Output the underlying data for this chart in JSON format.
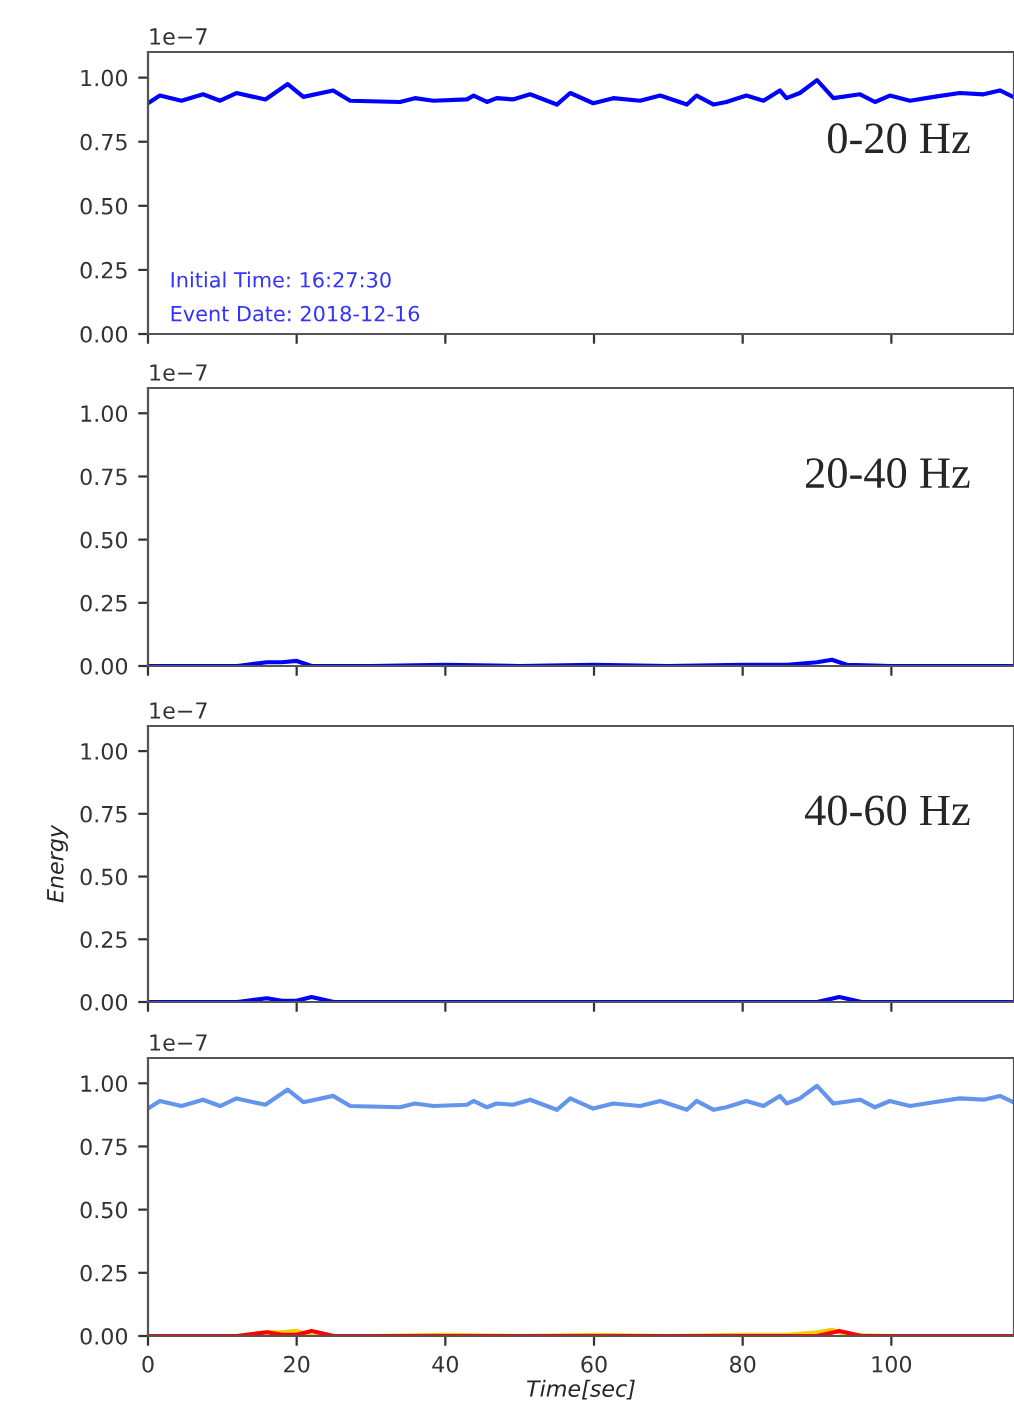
{
  "chart_data": [
    {
      "type": "line",
      "xlim": [
        0,
        116.5
      ],
      "ylim": [
        0,
        1.1
      ],
      "tick_labels": "y",
      "grid": false,
      "legend": false,
      "xticks": [
        {
          "value": 0,
          "label": null
        },
        {
          "value": 20,
          "label": null
        },
        {
          "value": 40,
          "label": null
        },
        {
          "value": 60,
          "label": null
        },
        {
          "value": 80,
          "label": null
        },
        {
          "value": 100,
          "label": null
        }
      ],
      "yticks": [
        {
          "value": 0,
          "label": "0.00"
        },
        {
          "value": 0.25,
          "label": "0.25"
        },
        {
          "value": 0.5,
          "label": "0.50"
        },
        {
          "value": 0.75,
          "label": "0.75"
        },
        {
          "value": 1.0,
          "label": "1.00"
        }
      ],
      "annotations": [
        "1e−7",
        "0-20 Hz",
        "Initial Time: 16:27:30",
        "Event Date: 2018-12-16"
      ],
      "series": [
        {
          "color": "#0000ff",
          "x": [
            0,
            1.6,
            4.5,
            7.4,
            9.7,
            11.9,
            14.2,
            15.8,
            18.8,
            20.9,
            24.9,
            27.2,
            33.9,
            35.9,
            38.4,
            42.9,
            43.8,
            45.6,
            46.9,
            49.1,
            51.4,
            55,
            56.8,
            59.9,
            62.6,
            66.2,
            68.9,
            72.5,
            73.8,
            76.1,
            77.8,
            80.5,
            82.8,
            85,
            85.9,
            87.7,
            90,
            92.2,
            95.8,
            97.8,
            99.8,
            102.5,
            105.7,
            109.2,
            112.4,
            114.6,
            116.4
          ],
          "values": [
            0.9,
            0.93,
            0.91,
            0.935,
            0.91,
            0.94,
            0.925,
            0.915,
            0.975,
            0.925,
            0.95,
            0.91,
            0.905,
            0.92,
            0.91,
            0.915,
            0.93,
            0.905,
            0.92,
            0.915,
            0.935,
            0.895,
            0.94,
            0.9,
            0.92,
            0.91,
            0.93,
            0.895,
            0.93,
            0.895,
            0.905,
            0.93,
            0.91,
            0.95,
            0.92,
            0.94,
            0.99,
            0.92,
            0.935,
            0.905,
            0.93,
            0.91,
            0.925,
            0.94,
            0.935,
            0.95,
            0.925
          ]
        }
      ]
    },
    {
      "type": "line",
      "xlim": [
        0,
        116.5
      ],
      "ylim": [
        0,
        1.1
      ],
      "tick_labels": "y",
      "grid": false,
      "legend": false,
      "xticks": [
        {
          "value": 0,
          "label": null
        },
        {
          "value": 20,
          "label": null
        },
        {
          "value": 40,
          "label": null
        },
        {
          "value": 60,
          "label": null
        },
        {
          "value": 80,
          "label": null
        },
        {
          "value": 100,
          "label": null
        }
      ],
      "yticks": [
        {
          "value": 0,
          "label": "0.00"
        },
        {
          "value": 0.25,
          "label": "0.25"
        },
        {
          "value": 0.5,
          "label": "0.50"
        },
        {
          "value": 0.75,
          "label": "0.75"
        },
        {
          "value": 1.0,
          "label": "1.00"
        }
      ],
      "annotations": [
        "1e−7",
        "20-40 Hz"
      ],
      "series": [
        {
          "color": "#0000ff",
          "x": [
            0,
            12,
            16,
            18,
            20,
            22,
            30,
            40,
            50,
            60,
            70,
            80,
            86,
            90,
            92,
            94,
            100,
            116.4
          ],
          "values": [
            0.0,
            0.0,
            0.015,
            0.015,
            0.02,
            0.0,
            0.0,
            0.005,
            0.0,
            0.005,
            0.0,
            0.005,
            0.005,
            0.015,
            0.025,
            0.005,
            0.0,
            0.0
          ]
        }
      ]
    },
    {
      "type": "line",
      "xlim": [
        0,
        116.5
      ],
      "ylim": [
        0,
        1.1
      ],
      "tick_labels": "y",
      "grid": false,
      "legend": false,
      "ylabel": "Energy",
      "xticks": [
        {
          "value": 0,
          "label": null
        },
        {
          "value": 20,
          "label": null
        },
        {
          "value": 40,
          "label": null
        },
        {
          "value": 60,
          "label": null
        },
        {
          "value": 80,
          "label": null
        },
        {
          "value": 100,
          "label": null
        }
      ],
      "yticks": [
        {
          "value": 0,
          "label": "0.00"
        },
        {
          "value": 0.25,
          "label": "0.25"
        },
        {
          "value": 0.5,
          "label": "0.50"
        },
        {
          "value": 0.75,
          "label": "0.75"
        },
        {
          "value": 1.0,
          "label": "1.00"
        }
      ],
      "annotations": [
        "1e−7",
        "40-60 Hz"
      ],
      "series": [
        {
          "color": "#0000ff",
          "x": [
            0,
            12,
            16,
            18,
            20,
            22,
            25,
            40,
            60,
            80,
            90,
            93,
            96,
            116.4
          ],
          "values": [
            0.0,
            0.0,
            0.015,
            0.005,
            0.005,
            0.02,
            0.0,
            0.0,
            0.0,
            0.0,
            0.0,
            0.02,
            0.0,
            0.0
          ]
        }
      ]
    },
    {
      "type": "line",
      "xlim": [
        0,
        116.5
      ],
      "ylim": [
        0,
        1.1
      ],
      "grid": false,
      "legend": false,
      "xlabel": "Time[sec]",
      "xticks": [
        0,
        20,
        40,
        60,
        80,
        100
      ],
      "yticks": [
        {
          "value": 0,
          "label": "0.00"
        },
        {
          "value": 0.25,
          "label": "0.25"
        },
        {
          "value": 0.5,
          "label": "0.50"
        },
        {
          "value": 0.75,
          "label": "0.75"
        },
        {
          "value": 1.0,
          "label": "1.00"
        }
      ],
      "annotations": [
        "1e−7"
      ],
      "series": [
        {
          "color": "#6495ed",
          "x": [
            0,
            1.6,
            4.5,
            7.4,
            9.7,
            11.9,
            14.2,
            15.8,
            18.8,
            20.9,
            24.9,
            27.2,
            33.9,
            35.9,
            38.4,
            42.9,
            43.8,
            45.6,
            46.9,
            49.1,
            51.4,
            55,
            56.8,
            59.9,
            62.6,
            66.2,
            68.9,
            72.5,
            73.8,
            76.1,
            77.8,
            80.5,
            82.8,
            85,
            85.9,
            87.7,
            90,
            92.2,
            95.8,
            97.8,
            99.8,
            102.5,
            105.7,
            109.2,
            112.4,
            114.6,
            116.4
          ],
          "values": [
            0.9,
            0.93,
            0.91,
            0.935,
            0.91,
            0.94,
            0.925,
            0.915,
            0.975,
            0.925,
            0.95,
            0.91,
            0.905,
            0.92,
            0.91,
            0.915,
            0.93,
            0.905,
            0.92,
            0.915,
            0.935,
            0.895,
            0.94,
            0.9,
            0.92,
            0.91,
            0.93,
            0.895,
            0.93,
            0.895,
            0.905,
            0.93,
            0.91,
            0.95,
            0.92,
            0.94,
            0.99,
            0.92,
            0.935,
            0.905,
            0.93,
            0.91,
            0.925,
            0.94,
            0.935,
            0.95,
            0.925
          ]
        },
        {
          "color": "#ffcc00",
          "x": [
            0,
            12,
            16,
            18,
            20,
            22,
            30,
            40,
            50,
            60,
            70,
            80,
            86,
            90,
            92,
            94,
            100,
            116.4
          ],
          "values": [
            0.0,
            0.0,
            0.015,
            0.015,
            0.02,
            0.0,
            0.0,
            0.005,
            0.0,
            0.005,
            0.0,
            0.005,
            0.005,
            0.015,
            0.025,
            0.005,
            0.0,
            0.0
          ]
        },
        {
          "color": "#ff0000",
          "x": [
            0,
            12,
            16,
            18,
            20,
            22,
            25,
            40,
            60,
            80,
            90,
            93,
            96,
            116.4
          ],
          "values": [
            0.0,
            0.0,
            0.015,
            0.005,
            0.005,
            0.02,
            0.0,
            0.0,
            0.0,
            0.0,
            0.0,
            0.02,
            0.0,
            0.0
          ]
        }
      ]
    }
  ]
}
